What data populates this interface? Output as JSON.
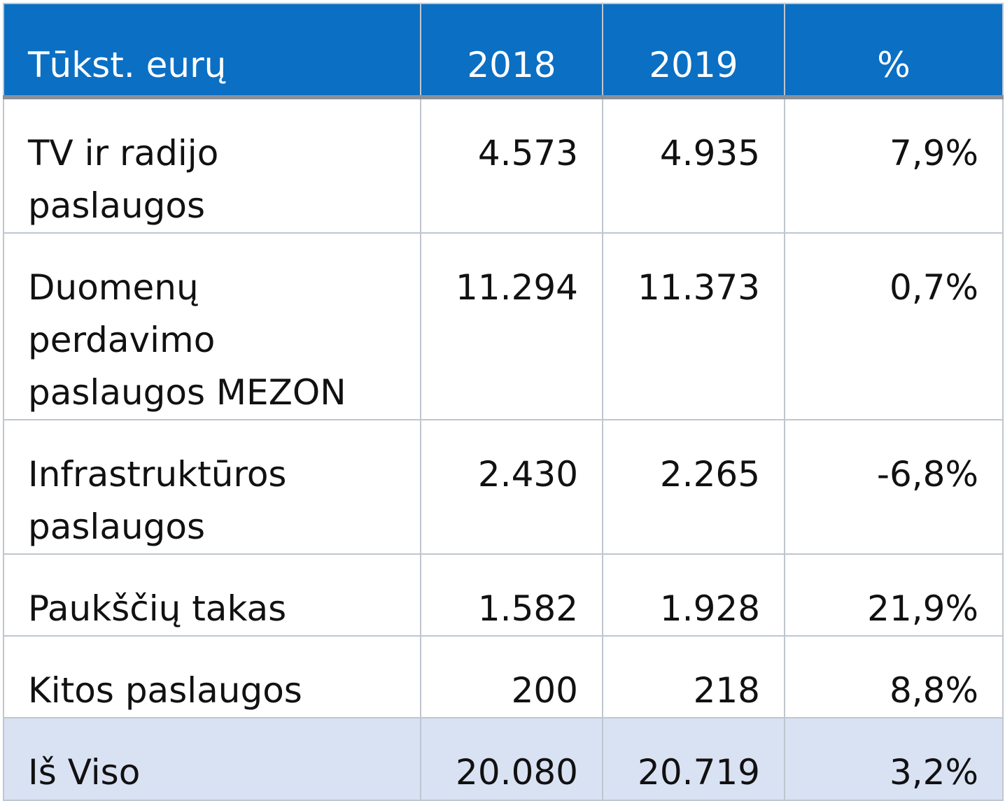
{
  "header": {
    "label": "Tūkst. eurų",
    "col_2018": "2018",
    "col_2019": "2019",
    "col_pct": "%"
  },
  "rows": [
    {
      "label": "TV ir radijo paslaugos",
      "v2018": "4.573",
      "v2019": "4.935",
      "pct": "7,9%"
    },
    {
      "label": "Duomenų perdavimo paslaugos MEZON",
      "v2018": "11.294",
      "v2019": "11.373",
      "pct": "0,7%"
    },
    {
      "label": "Infrastruktūros paslaugos",
      "v2018": "2.430",
      "v2019": "2.265",
      "pct": "-6,8%"
    },
    {
      "label": "Paukščių takas",
      "v2018": "1.582",
      "v2019": "1.928",
      "pct": "21,9%"
    },
    {
      "label": "Kitos paslaugos",
      "v2018": "200",
      "v2019": "218",
      "pct": "8,8%"
    }
  ],
  "total": {
    "label": "Iš Viso",
    "v2018": "20.080",
    "v2019": "20.719",
    "pct": "3,2%"
  },
  "colors": {
    "header_bg": "#0b6fc4",
    "header_text": "#ffffff",
    "total_bg": "#d9e2f3",
    "grid": "#bfc6cf"
  }
}
